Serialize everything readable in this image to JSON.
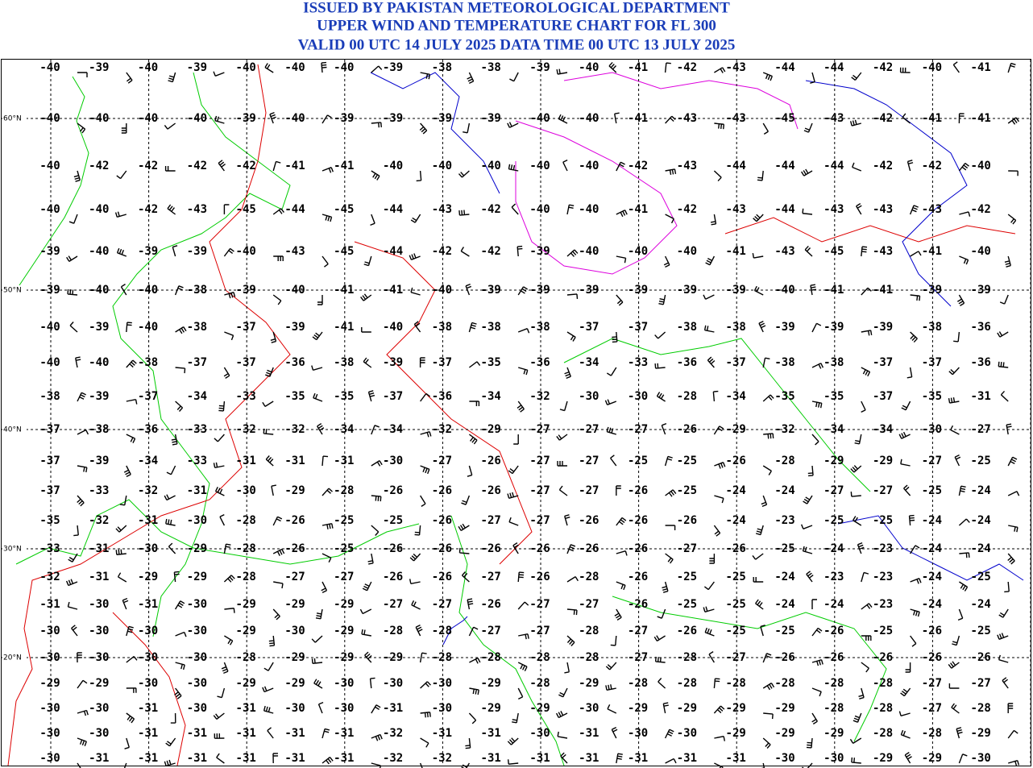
{
  "header": {
    "lines": [
      "ISSUED BY PAKISTAN METEOROLOGICAL DEPARTMENT",
      "UPPER WIND AND TEMPERATURE CHART FOR FL 300",
      "VALID 00 UTC 14 JULY 2025 DATA TIME 00 UTC 13 JULY 2025"
    ]
  },
  "map": {
    "latitude_labels": [
      "60°N",
      "50°N",
      "40°N",
      "30°N",
      "20°N"
    ],
    "temperature_rows": [
      [
        -40,
        -39,
        -40,
        -39,
        -40,
        -40,
        -40,
        -39,
        -38,
        -38,
        -39,
        -40,
        -41,
        -42,
        -43,
        -44,
        -44,
        -42,
        -40,
        -41
      ],
      [
        -40,
        -40,
        -40,
        -40,
        -39,
        -40,
        -39,
        -39,
        -39,
        -39,
        -40,
        -40,
        -41,
        -43,
        -43,
        -45,
        -43,
        -42,
        -41,
        -41
      ],
      [
        -40,
        -42,
        -42,
        -42,
        -42,
        -41,
        -41,
        -40,
        -40,
        -40,
        -40,
        -40,
        -42,
        -43,
        -44,
        -44,
        -44,
        -42,
        -42,
        -40
      ],
      [
        -40,
        -40,
        -42,
        -43,
        -45,
        -44,
        -45,
        -44,
        -43,
        -42,
        -40,
        -40,
        -41,
        -42,
        -43,
        -44,
        -43,
        -43,
        -43,
        -42
      ],
      [
        -39,
        -40,
        -39,
        -39,
        -40,
        -43,
        -45,
        -44,
        -42,
        -42,
        -39,
        -40,
        -40,
        -40,
        -41,
        -43,
        -45,
        -43,
        -41,
        -40
      ],
      [
        -39,
        -40,
        -40,
        -38,
        -39,
        -40,
        -41,
        -41,
        -40,
        -39,
        -39,
        -39,
        -39,
        -39,
        -39,
        -40,
        -41,
        -41,
        -39,
        -39
      ],
      [
        -40,
        -39,
        -40,
        -38,
        -37,
        -39,
        -41,
        -40,
        -38,
        -38,
        -38,
        -37,
        -37,
        -38,
        -38,
        -39,
        -39,
        -39,
        -38,
        -36
      ],
      [
        -40,
        -40,
        -38,
        -37,
        -37,
        -36,
        -38,
        -39,
        -37,
        -35,
        -36,
        -34,
        -33,
        -36,
        -37,
        -38,
        -38,
        -37,
        -37,
        -36
      ],
      [
        -38,
        -39,
        -37,
        -34,
        -33,
        -35,
        -35,
        -37,
        -36,
        -34,
        -32,
        -30,
        -30,
        -28,
        -34,
        -35,
        -35,
        -37,
        -35,
        -31
      ],
      [
        -37,
        -38,
        -36,
        -33,
        -32,
        -32,
        -34,
        -34,
        -32,
        -29,
        -27,
        -27,
        -27,
        -26,
        -29,
        -32,
        -34,
        -34,
        -30,
        -27
      ],
      [
        -37,
        -39,
        -34,
        -33,
        -31,
        -31,
        -31,
        -30,
        -27,
        -26,
        -27,
        -27,
        -25,
        -25,
        -26,
        -28,
        -29,
        -29,
        -27,
        -25
      ],
      [
        -37,
        -33,
        -32,
        -31,
        -30,
        -29,
        -28,
        -26,
        -26,
        -26,
        -27,
        -27,
        -26,
        -25,
        -24,
        -24,
        -27,
        -27,
        -25,
        -24
      ],
      [
        -35,
        -32,
        -31,
        -30,
        -28,
        -26,
        -25,
        -25,
        -26,
        -27,
        -27,
        -26,
        -26,
        -26,
        -24,
        -23,
        -25,
        -25,
        -24,
        -24
      ],
      [
        -33,
        -31,
        -30,
        -29,
        -28,
        -26,
        -25,
        -26,
        -26,
        -26,
        -26,
        -26,
        -26,
        -27,
        -26,
        -25,
        -24,
        -23,
        -24,
        -24
      ],
      [
        -32,
        -31,
        -29,
        -29,
        -28,
        -27,
        -27,
        -26,
        -26,
        -27,
        -26,
        -28,
        -26,
        -25,
        -25,
        -24,
        -23,
        -23,
        -24,
        -25
      ],
      [
        -31,
        -30,
        -31,
        -30,
        -29,
        -29,
        -29,
        -27,
        -27,
        -26,
        -27,
        -27,
        -26,
        -25,
        -25,
        -24,
        -24,
        -23,
        -24,
        -24
      ],
      [
        -30,
        -30,
        -30,
        -30,
        -29,
        -30,
        -29,
        -28,
        -28,
        -27,
        -27,
        -28,
        -27,
        -26,
        -25,
        -25,
        -26,
        -25,
        -26,
        -25
      ],
      [
        -30,
        -30,
        -30,
        -30,
        -28,
        -29,
        -29,
        -29,
        -28,
        -28,
        -28,
        -28,
        -27,
        -28,
        -27,
        -26,
        -26,
        -26,
        -26,
        -26
      ],
      [
        -29,
        -29,
        -30,
        -30,
        -29,
        -29,
        -30,
        -30,
        -30,
        -29,
        -28,
        -29,
        -28,
        -28,
        -28,
        -28,
        -28,
        -28,
        -27,
        -27
      ],
      [
        -30,
        -30,
        -31,
        -30,
        -31,
        -30,
        -30,
        -31,
        -30,
        -29,
        -29,
        -30,
        -29,
        -29,
        -29,
        -29,
        -28,
        -28,
        -27,
        -28
      ],
      [
        -30,
        -30,
        -31,
        -31,
        -31,
        -31,
        -31,
        -32,
        -31,
        -31,
        -30,
        -31,
        -30,
        -30,
        -29,
        -29,
        -29,
        -28,
        -28,
        -29
      ],
      [
        -30,
        -31,
        -31,
        -31,
        -31,
        -31,
        -31,
        -32,
        -32,
        -31,
        -31,
        -31,
        -31,
        -31,
        -31,
        -30,
        -30,
        -29,
        -29,
        -30
      ]
    ]
  }
}
